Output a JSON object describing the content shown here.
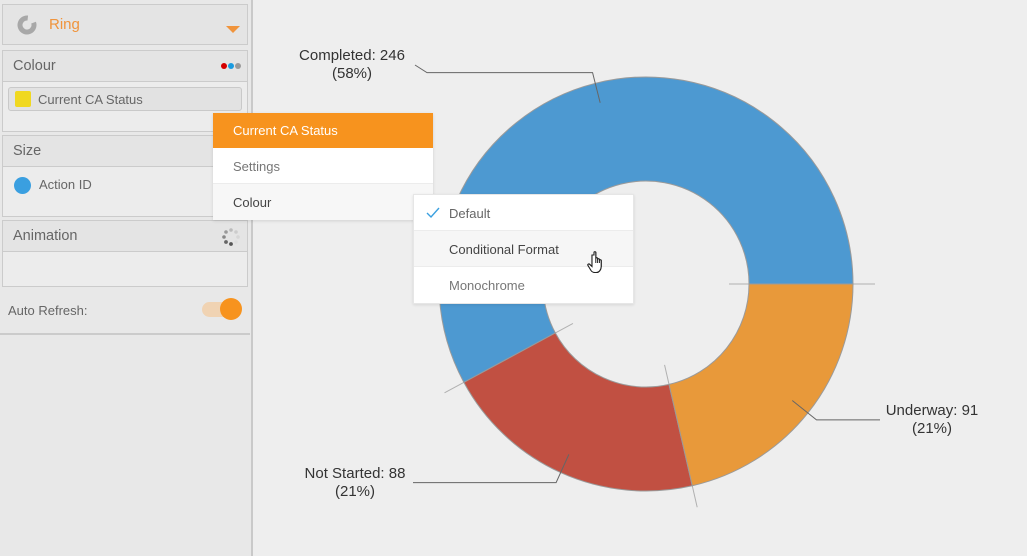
{
  "sidebar": {
    "chart_type": {
      "label": "Ring",
      "icon": "ring-chart-icon"
    },
    "colour_panel": {
      "title": "Colour",
      "palette_dots": [
        "#d40000",
        "#1a9be0",
        "#9a9a9a"
      ],
      "field": {
        "label": "Current CA Status",
        "swatch_color": "#f0d820"
      }
    },
    "size_panel": {
      "title": "Size",
      "field": {
        "label": "Action ID",
        "dot_color": "#3a9fe0"
      }
    },
    "animation_panel": {
      "title": "Animation",
      "icon": "spinner-icon"
    },
    "auto_refresh": {
      "label": "Auto Refresh:",
      "enabled": true
    }
  },
  "context_menu": {
    "header": "Current CA Status",
    "items": [
      {
        "label": "Settings"
      },
      {
        "label": "Colour",
        "has_submenu": true
      }
    ]
  },
  "colour_submenu": {
    "items": [
      {
        "label": "Default",
        "checked": true
      },
      {
        "label": "Conditional Format",
        "hovered": true
      },
      {
        "label": "Monochrome"
      }
    ]
  },
  "colors": {
    "accent": "#f7931e",
    "check": "#3ba0e0"
  },
  "chart_data": {
    "type": "pie",
    "variant": "ring",
    "categories": [
      "Completed",
      "Not Started",
      "Underway"
    ],
    "values": [
      246,
      88,
      91
    ],
    "percentages": [
      58,
      21,
      21
    ],
    "colors": [
      "#4d99d1",
      "#c15042",
      "#e8993a"
    ],
    "labels": [
      {
        "line1": "Completed: 246",
        "line2": "(58%)"
      },
      {
        "line1": "Not Started: 88",
        "line2": "(21%)"
      },
      {
        "line1": "Underway: 91",
        "line2": "(21%)"
      }
    ],
    "title": "",
    "legend": "none",
    "start_angle": "3 o'clock",
    "direction": "counter-clockwise"
  }
}
